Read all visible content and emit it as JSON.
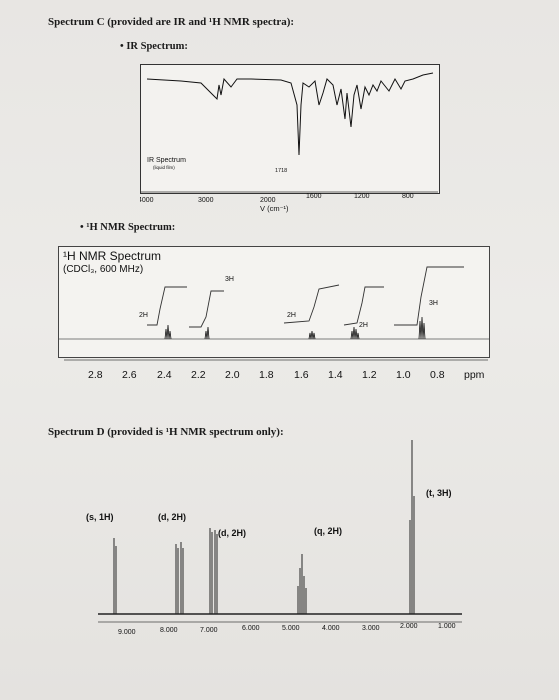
{
  "spectrum_c": {
    "heading": "Spectrum C (provided are IR and ¹H NMR spectra):",
    "ir_bullet": "IR Spectrum:",
    "ir": {
      "inset_title": "IR Spectrum",
      "inset_subtitle": "(liquid film)",
      "peak_label": "1718",
      "tick_labels": [
        "4000",
        "3000",
        "2000",
        "1600",
        "1200",
        "800"
      ],
      "xlabel": "V (cm⁻¹)"
    },
    "nmr_bullet": "¹H NMR Spectrum:",
    "nmr": {
      "title": "¹H NMR Spectrum",
      "conditions": "(CDCl₃, 600 MHz)",
      "integrals": [
        "2H",
        "3H",
        "2H",
        "2H",
        "3H"
      ],
      "tick_labels": [
        "2.8",
        "2.6",
        "2.4",
        "2.2",
        "2.0",
        "1.8",
        "1.6",
        "1.4",
        "1.2",
        "1.0",
        "0.8"
      ],
      "unit": "ppm"
    }
  },
  "spectrum_d": {
    "heading": "Spectrum D (provided is ¹H NMR spectrum only):",
    "nmr": {
      "peak_labels": [
        "(s, 1H)",
        "(d, 2H)",
        "(d, 2H)",
        "(q, 2H)",
        "(t, 3H)"
      ],
      "tick_labels": [
        "9.000",
        "8.000",
        "7.000",
        "6.000",
        "5.000",
        "4.000",
        "3.000",
        "2.000",
        "1.000"
      ]
    }
  }
}
